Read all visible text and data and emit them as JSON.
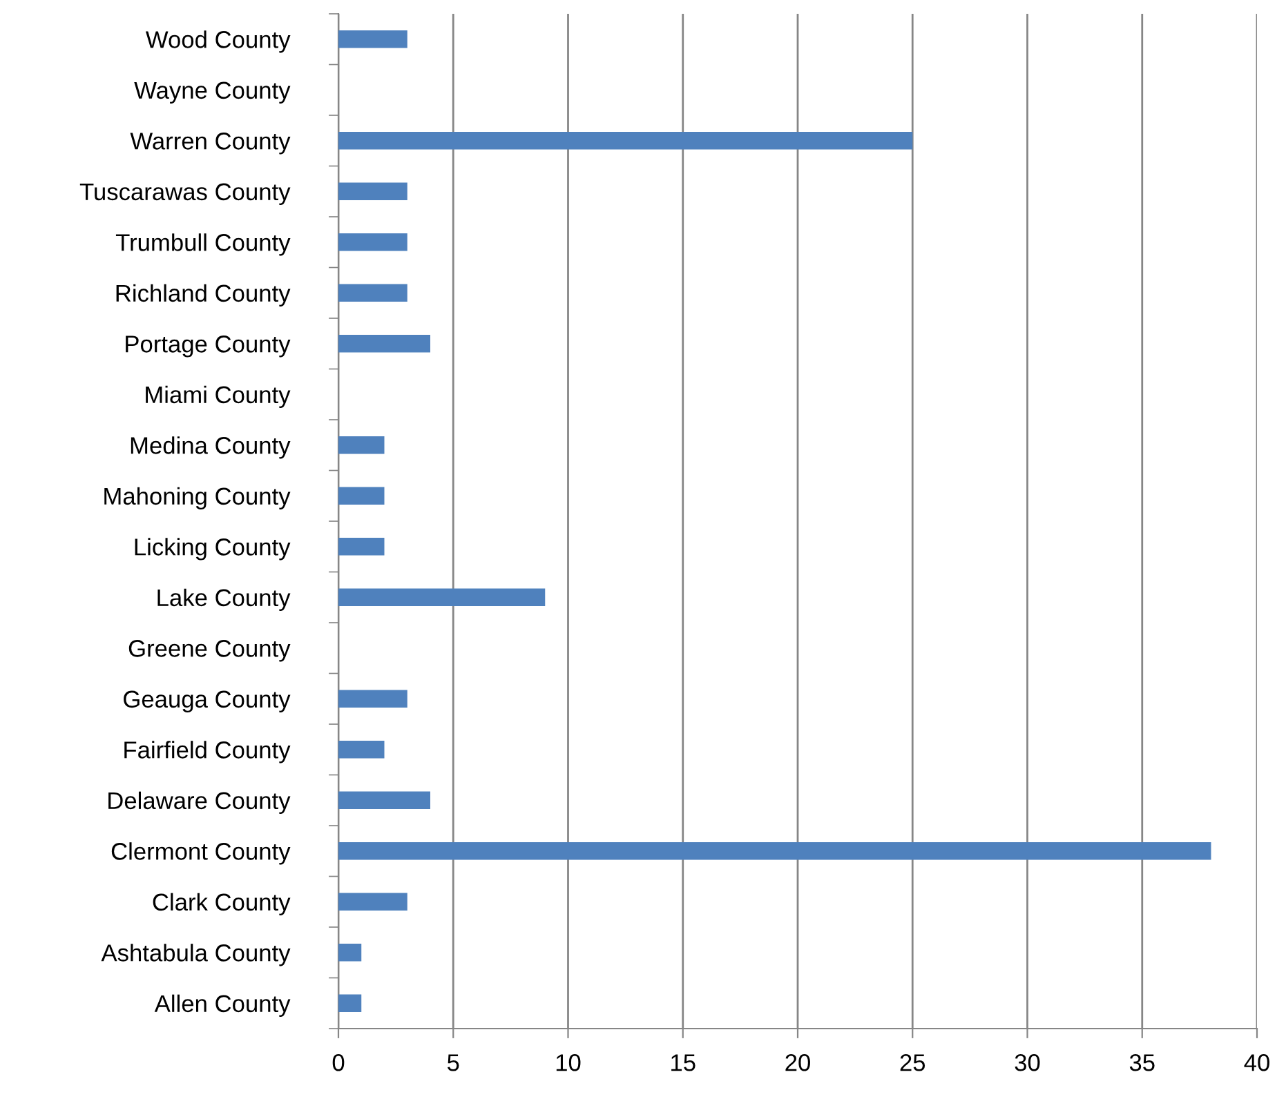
{
  "chart_data": {
    "type": "bar",
    "orientation": "horizontal",
    "categories": [
      "Wood County",
      "Wayne County",
      "Warren County",
      "Tuscarawas County",
      "Trumbull County",
      "Richland County",
      "Portage County",
      "Miami County",
      "Medina County",
      "Mahoning County",
      "Licking County",
      "Lake County",
      "Greene County",
      "Geauga County",
      "Fairfield County",
      "Delaware County",
      "Clermont County",
      "Clark County",
      "Ashtabula County",
      "Allen County"
    ],
    "values": [
      3,
      0,
      25,
      3,
      3,
      3,
      4,
      0,
      2,
      2,
      2,
      9,
      0,
      3,
      2,
      4,
      38,
      3,
      1,
      1
    ],
    "color": "#4f81bd",
    "xlim": [
      0,
      40
    ],
    "xticks": [
      0,
      5,
      10,
      15,
      20,
      25,
      30,
      35,
      40
    ],
    "grid": "x",
    "legend": false
  }
}
